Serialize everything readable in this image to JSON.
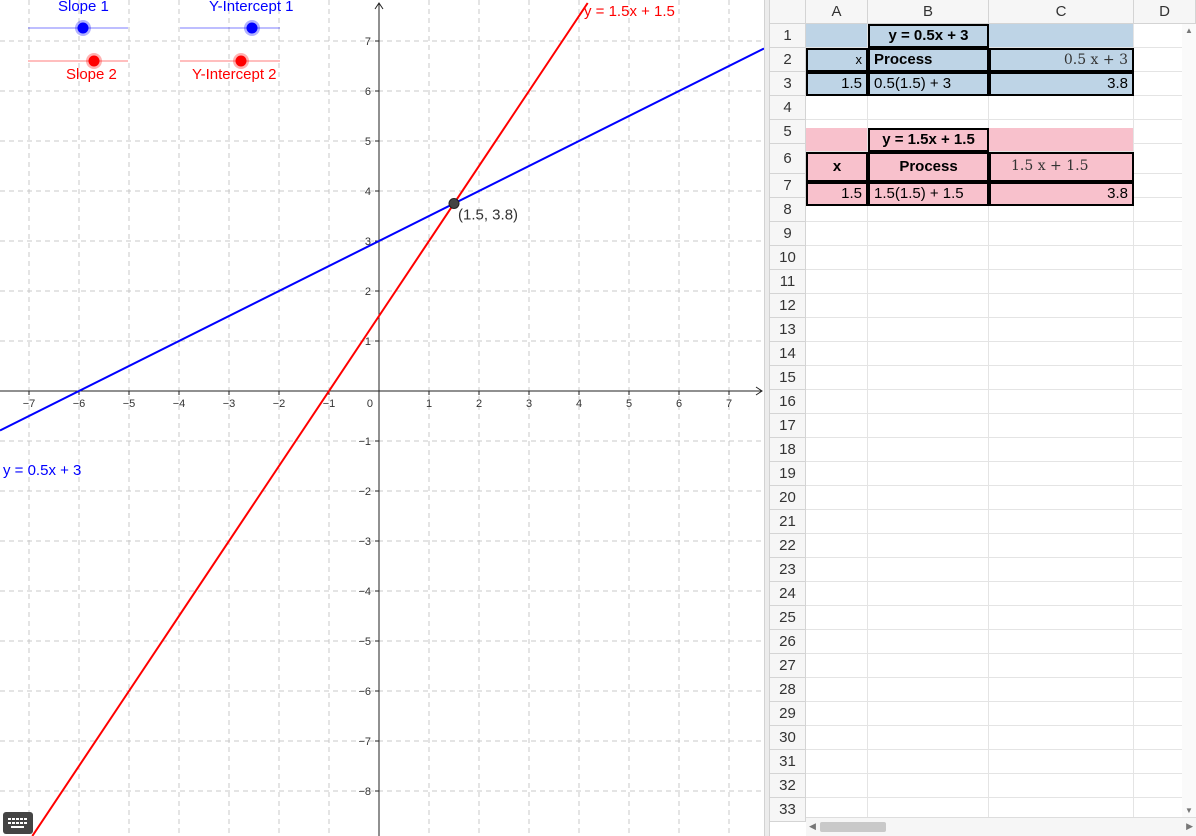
{
  "graph": {
    "x_ticks": [
      "−7",
      "−6",
      "−5",
      "−4",
      "−3",
      "−2",
      "−1",
      "1",
      "2",
      "3",
      "4",
      "5",
      "6",
      "7"
    ],
    "y_ticks": [
      "7",
      "6",
      "5",
      "4",
      "3",
      "2",
      "1",
      "−1",
      "−2",
      "−3",
      "−4",
      "−5",
      "−6",
      "−7",
      "−8"
    ],
    "origin_label": "0",
    "line1_label": "y = 0.5x + 3",
    "line2_label": "y = 1.5x + 1.5",
    "intersection_label": "(1.5, 3.8)",
    "line1_color": "#0000ff",
    "line2_color": "#ff0000",
    "point_color": "#444444",
    "sliders": {
      "slope1": "Slope 1",
      "yint1": "Y-Intercept 1",
      "slope2": "Slope 2",
      "yint2": "Y-Intercept 2"
    }
  },
  "spreadsheet": {
    "columns": [
      "A",
      "B",
      "C",
      "D"
    ],
    "rows": [
      "1",
      "2",
      "3",
      "4",
      "5",
      "6",
      "7",
      "8",
      "9",
      "10",
      "11",
      "12",
      "13",
      "14",
      "15",
      "16",
      "17",
      "18",
      "19",
      "20",
      "21",
      "22",
      "23",
      "24",
      "25",
      "26",
      "27",
      "28",
      "29",
      "30",
      "31",
      "32",
      "33"
    ],
    "table1": {
      "title": "y = 0.5x + 3",
      "x_header": "x",
      "process_header": "Process",
      "formula_header": "0.5 x + 3",
      "x_value": "1.5",
      "process_value": "0.5(1.5) + 3",
      "result": "3.8",
      "color": "#bed4e6"
    },
    "table2": {
      "title": "y = 1.5x + 1.5",
      "x_header": "x",
      "process_header": "Process",
      "formula_header": "1.5 x + 1.5",
      "x_value": "1.5",
      "process_value": "1.5(1.5) + 1.5",
      "result": "3.8",
      "color": "#f8c1cc"
    }
  }
}
